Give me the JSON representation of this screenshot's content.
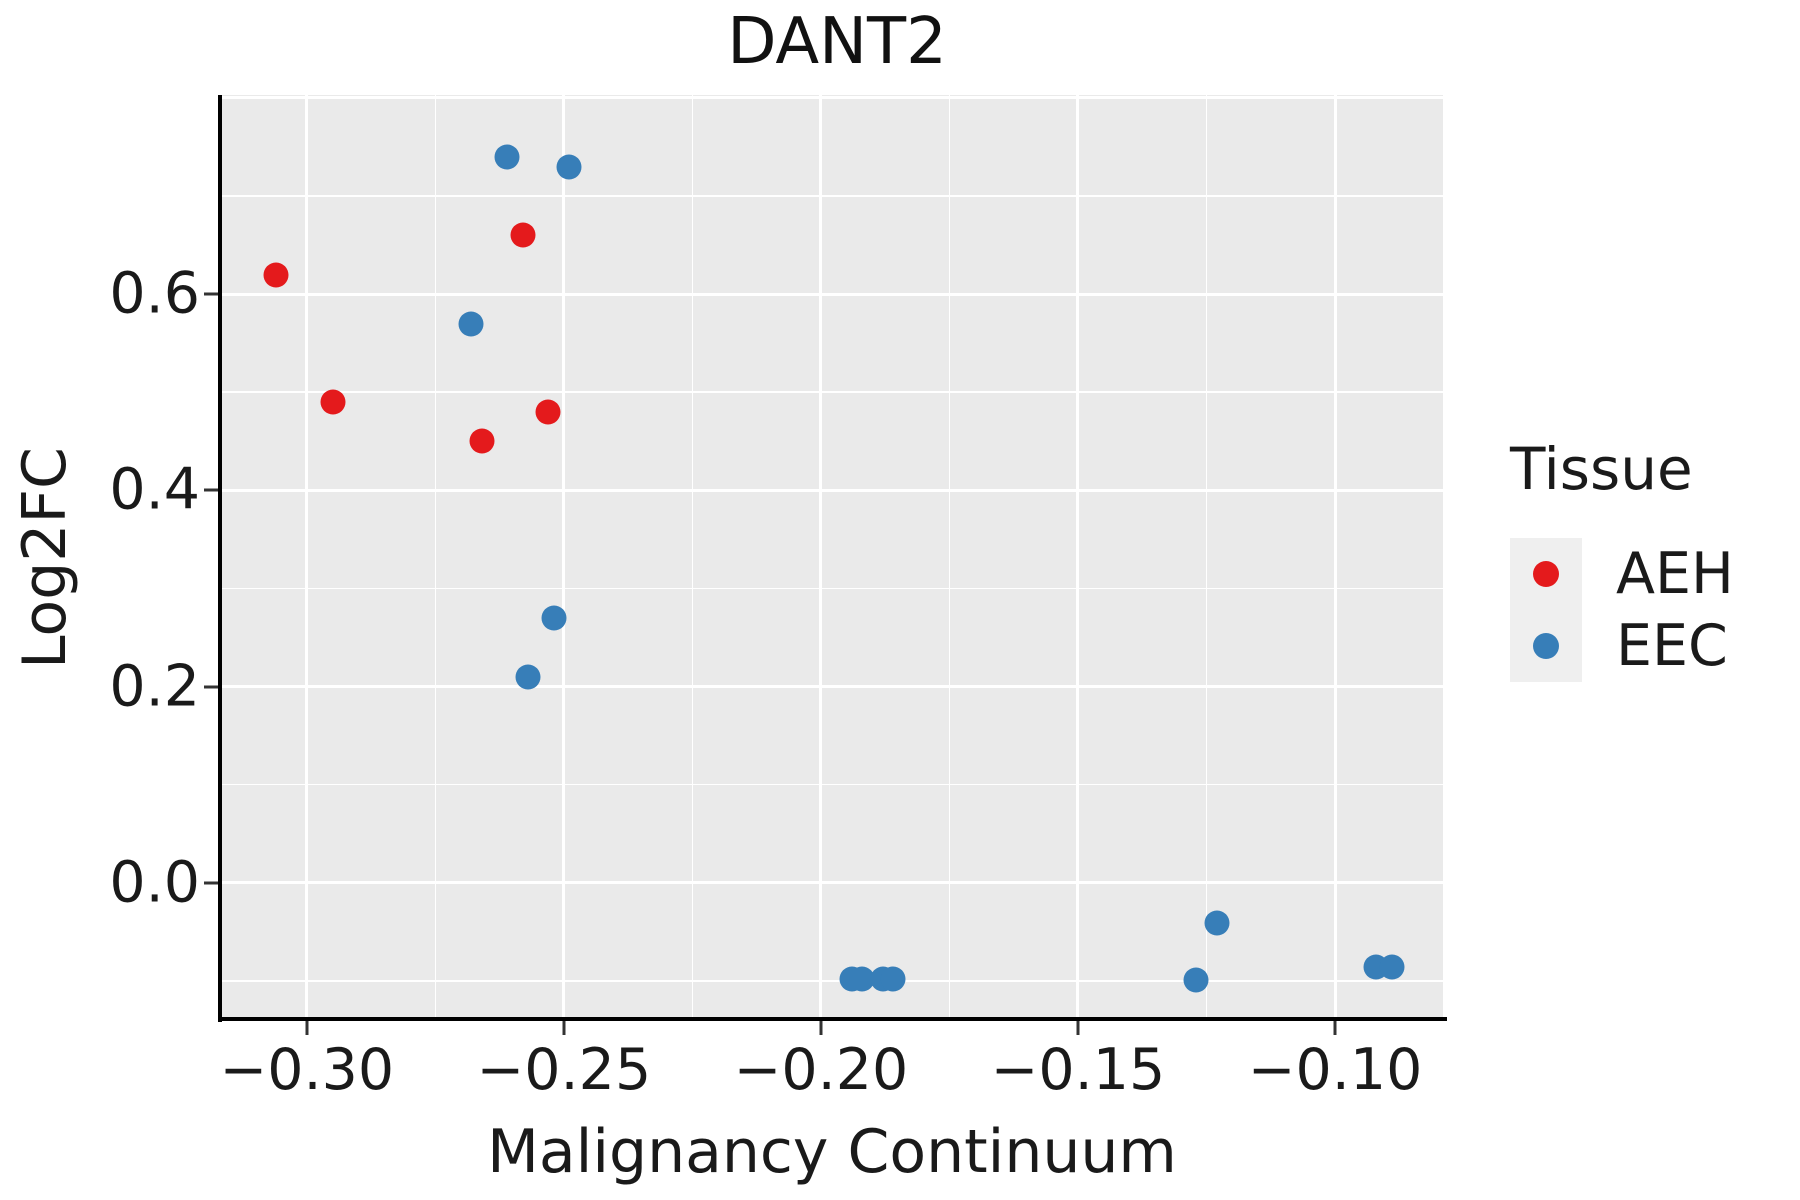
{
  "title": "DANT2",
  "axes": {
    "x": {
      "label": "Malignancy Continuum",
      "tick_values": [
        -0.3,
        -0.25,
        -0.2,
        -0.15,
        -0.1
      ],
      "tick_labels": [
        "−0.30",
        "−0.25",
        "−0.20",
        "−0.15",
        "−0.10"
      ]
    },
    "y": {
      "label": "Log2FC",
      "tick_values": [
        0.6,
        0.4,
        0.2,
        0.0
      ],
      "tick_labels": [
        "0.6",
        "0.4",
        "0.2",
        "0.0"
      ]
    }
  },
  "legend": {
    "title": "Tissue",
    "entries": [
      {
        "label": "AEH",
        "color": "#E41A1C"
      },
      {
        "label": "EEC",
        "color": "#377EB8"
      }
    ]
  },
  "colors": {
    "panel_background": "#EAEAEA",
    "gridline": "#FFFFFF",
    "axis_spine": "#000000",
    "aeh_red": "#E41A1C",
    "eec_blue": "#377EB8"
  },
  "chart_data": {
    "type": "scatter",
    "title": "DANT2",
    "xlabel": "Malignancy Continuum",
    "ylabel": "Log2FC",
    "xlim": [
      -0.3165,
      -0.079
    ],
    "ylim": [
      -0.141,
      0.803
    ],
    "grid": "major+minor",
    "legend_position": "right",
    "gridlines": {
      "x_major": [
        -0.3,
        -0.25,
        -0.2,
        -0.15,
        -0.1
      ],
      "x_minor": [
        -0.275,
        -0.225,
        -0.175,
        -0.125
      ],
      "y_major": [
        0.8,
        0.6,
        0.4,
        0.2,
        0.0
      ],
      "y_minor": [
        0.7,
        0.5,
        0.3,
        0.1,
        -0.1
      ]
    },
    "series": [
      {
        "name": "AEH",
        "color": "#E41A1C",
        "points": [
          [
            -0.306,
            0.62
          ],
          [
            -0.295,
            0.49
          ],
          [
            -0.258,
            0.66
          ],
          [
            -0.266,
            0.45
          ],
          [
            -0.253,
            0.48
          ]
        ]
      },
      {
        "name": "EEC",
        "color": "#377EB8",
        "points": [
          [
            -0.261,
            0.74
          ],
          [
            -0.249,
            0.73
          ],
          [
            -0.268,
            0.57
          ],
          [
            -0.252,
            0.27
          ],
          [
            -0.257,
            0.21
          ],
          [
            -0.194,
            -0.098
          ],
          [
            -0.192,
            -0.098
          ],
          [
            -0.188,
            -0.098
          ],
          [
            -0.186,
            -0.098
          ],
          [
            -0.127,
            -0.099
          ],
          [
            -0.123,
            -0.041
          ],
          [
            -0.092,
            -0.086
          ],
          [
            -0.089,
            -0.086
          ]
        ]
      }
    ]
  }
}
